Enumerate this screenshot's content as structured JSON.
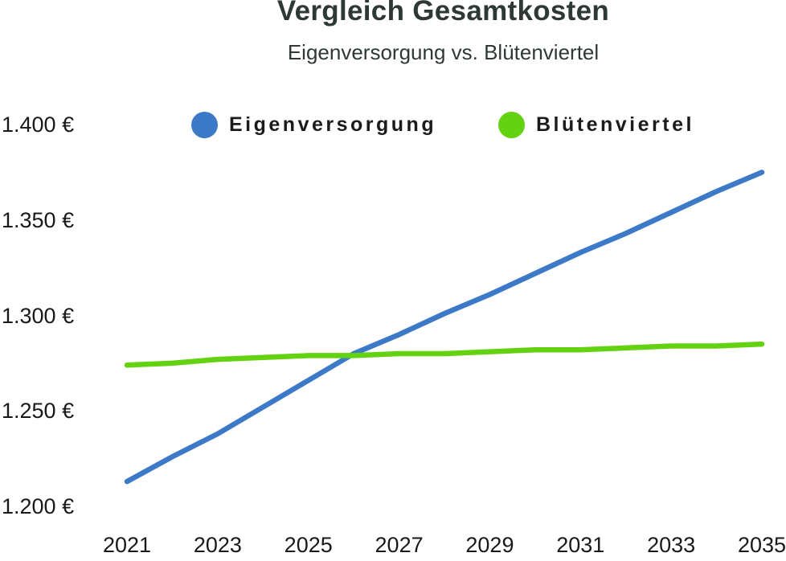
{
  "header": {
    "title": "Vergleich Gesamtkosten",
    "subtitle": "Eigenversorgung vs. Blütenviertel"
  },
  "legend": {
    "items": [
      {
        "label": "Eigenversorgung",
        "color": "#3c7ac8",
        "swatch_icon": "circle-swatch-icon"
      },
      {
        "label": "Blütenviertel",
        "color": "#62d211",
        "swatch_icon": "circle-swatch-icon"
      }
    ]
  },
  "chart_data": {
    "type": "line",
    "title": "Vergleich Gesamtkosten",
    "subtitle": "Eigenversorgung vs. Blütenviertel",
    "x": [
      2021,
      2022,
      2023,
      2024,
      2025,
      2026,
      2027,
      2028,
      2029,
      2030,
      2031,
      2032,
      2033,
      2034,
      2035
    ],
    "series": [
      {
        "name": "Eigenversorgung",
        "color": "#3c7ac8",
        "values": [
          1213,
          1226,
          1238,
          1252,
          1266,
          1280,
          1290,
          1301,
          1311,
          1322,
          1333,
          1343,
          1354,
          1365,
          1375
        ]
      },
      {
        "name": "Blütenviertel",
        "color": "#62d211",
        "values": [
          1274,
          1275,
          1277,
          1278,
          1279,
          1279,
          1280,
          1280,
          1281,
          1282,
          1282,
          1283,
          1284,
          1284,
          1285
        ]
      }
    ],
    "x_ticks": [
      2021,
      2023,
      2025,
      2027,
      2029,
      2031,
      2033,
      2035
    ],
    "x_tick_labels": [
      "2021",
      "2023",
      "2025",
      "2027",
      "2029",
      "2031",
      "2033",
      "2035"
    ],
    "y_ticks": [
      1400,
      1350,
      1300,
      1250,
      1200
    ],
    "y_tick_labels": [
      "1.400 €",
      "1.350 €",
      "1.300 €",
      "1.250 €",
      "1.200 €"
    ],
    "ylim": [
      1200,
      1400
    ],
    "xlabel": "",
    "ylabel": "",
    "grid": false,
    "legend_position": "top",
    "currency": "€",
    "line_width": 6.5
  }
}
